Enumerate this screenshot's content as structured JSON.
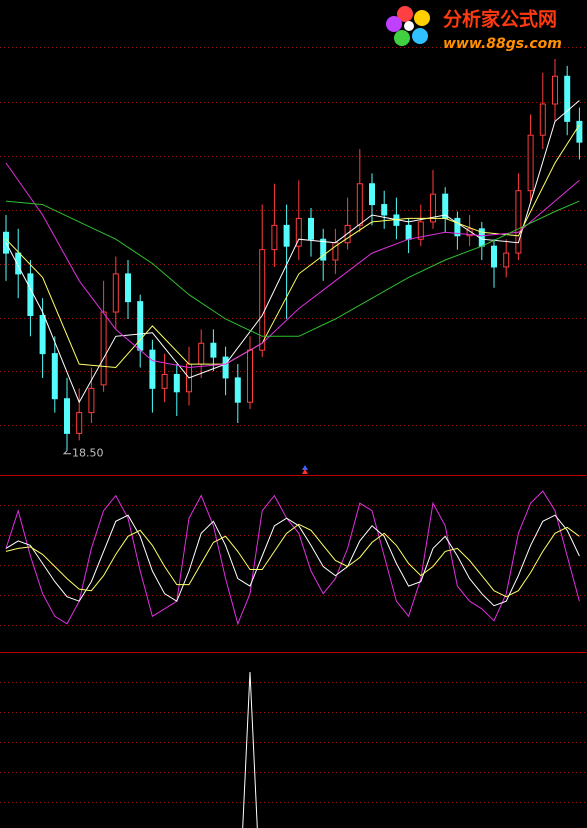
{
  "logo": {
    "title": "分析家公式网",
    "url": "www.88gs.com"
  },
  "chart_data": [
    {
      "type": "candlestick",
      "ylim": [
        17.8,
        31.5
      ],
      "up_color": "#ff3c3c",
      "down_color": "#54fcfc",
      "candles": {
        "open": [
          24.8,
          24.2,
          23.6,
          22.4,
          21.3,
          20.0,
          19.0,
          19.6,
          20.4,
          22.5,
          23.6,
          22.8,
          21.4,
          20.3,
          20.7,
          20.2,
          21.0,
          21.6,
          21.2,
          20.6,
          19.9,
          21.4,
          24.3,
          25.0,
          24.4,
          25.2,
          24.6,
          24.0,
          24.5,
          25.0,
          26.2,
          25.6,
          25.3,
          25.0,
          24.6,
          25.1,
          25.9,
          25.2,
          24.7,
          24.9,
          24.4,
          23.8,
          24.2,
          26.0,
          27.6,
          28.5,
          29.3,
          28.0
        ],
        "high": [
          25.3,
          24.9,
          24.0,
          22.9,
          21.8,
          20.6,
          20.3,
          20.9,
          23.4,
          24.1,
          24.0,
          23.0,
          21.7,
          21.3,
          21.0,
          21.5,
          22.0,
          22.0,
          21.5,
          21.0,
          21.8,
          25.6,
          26.2,
          25.6,
          26.3,
          25.5,
          24.9,
          24.9,
          25.8,
          27.2,
          26.5,
          26.0,
          25.8,
          25.2,
          25.6,
          26.6,
          26.1,
          25.4,
          25.3,
          25.1,
          24.6,
          24.6,
          26.5,
          28.2,
          29.4,
          29.8,
          29.6,
          28.4
        ],
        "low": [
          23.4,
          22.9,
          21.8,
          20.6,
          19.6,
          18.5,
          18.8,
          19.3,
          20.2,
          22.0,
          22.3,
          20.9,
          19.6,
          19.9,
          19.5,
          19.8,
          20.6,
          20.8,
          20.1,
          19.3,
          19.7,
          21.2,
          23.8,
          22.3,
          24.0,
          24.1,
          23.4,
          23.6,
          24.3,
          24.8,
          25.0,
          24.9,
          24.6,
          24.2,
          24.4,
          24.9,
          24.8,
          24.3,
          24.4,
          24.0,
          23.2,
          23.5,
          24.0,
          25.7,
          27.2,
          28.0,
          27.6,
          26.9
        ],
        "close": [
          24.2,
          23.6,
          22.4,
          21.3,
          20.0,
          19.0,
          19.6,
          20.3,
          22.5,
          23.6,
          22.8,
          21.4,
          20.3,
          20.7,
          20.2,
          21.0,
          21.6,
          21.2,
          20.6,
          19.9,
          21.4,
          24.3,
          25.0,
          24.4,
          25.2,
          24.6,
          24.0,
          24.5,
          25.0,
          26.2,
          25.6,
          25.3,
          25.0,
          24.6,
          25.1,
          25.9,
          25.2,
          24.7,
          24.9,
          24.4,
          23.8,
          24.2,
          26.0,
          27.6,
          28.5,
          29.3,
          28.0,
          27.4
        ]
      },
      "series": [
        {
          "color": "#ffffff",
          "x": [
            0,
            3,
            6,
            9,
            12,
            15,
            18,
            21,
            24,
            27,
            30,
            33,
            36,
            39,
            42,
            45,
            47
          ],
          "values": [
            24.5,
            22.5,
            19.9,
            21.8,
            21.9,
            20.6,
            21.0,
            22.4,
            24.6,
            24.5,
            25.3,
            25.1,
            25.3,
            24.6,
            24.5,
            28.0,
            28.6
          ]
        },
        {
          "color": "#ffff66",
          "x": [
            0,
            3,
            6,
            9,
            12,
            15,
            18,
            21,
            24,
            27,
            30,
            33,
            36,
            39,
            42,
            45,
            47
          ],
          "values": [
            24.6,
            23.5,
            21.0,
            20.9,
            22.1,
            21.0,
            21.0,
            21.6,
            23.6,
            24.4,
            25.1,
            25.2,
            25.2,
            24.8,
            24.7,
            26.8,
            27.9
          ]
        },
        {
          "color": "#e030e0",
          "x": [
            0,
            3,
            6,
            9,
            12,
            15,
            18,
            21,
            24,
            27,
            30,
            33,
            36,
            39,
            42,
            45,
            47
          ],
          "values": [
            26.8,
            25.3,
            23.4,
            22.0,
            21.1,
            20.9,
            21.0,
            21.6,
            22.6,
            23.4,
            24.2,
            24.6,
            24.8,
            24.7,
            24.8,
            25.7,
            26.3
          ]
        },
        {
          "color": "#30c030",
          "x": [
            0,
            3,
            6,
            9,
            12,
            15,
            18,
            21,
            24,
            27,
            30,
            33,
            36,
            39,
            42,
            45,
            47
          ],
          "values": [
            25.7,
            25.6,
            25.1,
            24.6,
            23.9,
            23.0,
            22.3,
            21.8,
            21.8,
            22.3,
            22.9,
            23.5,
            24.0,
            24.4,
            24.9,
            25.4,
            25.7
          ]
        }
      ],
      "annotations": [
        {
          "label": "18.50",
          "value": 18.5,
          "index": 5
        }
      ]
    },
    {
      "type": "line",
      "ylim": [
        -8,
        108
      ],
      "series": [
        {
          "color": "#e030e0",
          "values": [
            60,
            85,
            55,
            30,
            15,
            10,
            25,
            60,
            85,
            95,
            80,
            45,
            15,
            20,
            25,
            80,
            95,
            75,
            40,
            10,
            30,
            85,
            95,
            80,
            70,
            45,
            30,
            40,
            60,
            90,
            85,
            55,
            25,
            15,
            40,
            90,
            75,
            35,
            25,
            20,
            12,
            30,
            70,
            90,
            98,
            85,
            55,
            25
          ]
        },
        {
          "color": "#ffffff",
          "values": [
            60,
            65,
            62,
            50,
            38,
            28,
            25,
            38,
            58,
            78,
            82,
            68,
            45,
            30,
            25,
            45,
            70,
            78,
            62,
            40,
            35,
            55,
            75,
            80,
            75,
            62,
            48,
            42,
            48,
            65,
            75,
            68,
            50,
            35,
            38,
            60,
            68,
            55,
            40,
            30,
            22,
            25,
            42,
            62,
            78,
            82,
            72,
            55
          ]
        },
        {
          "color": "#ffff66",
          "values": [
            58,
            60,
            61,
            56,
            48,
            40,
            33,
            32,
            42,
            56,
            68,
            72,
            62,
            48,
            36,
            36,
            50,
            64,
            68,
            58,
            46,
            46,
            58,
            70,
            76,
            72,
            62,
            52,
            48,
            54,
            64,
            70,
            62,
            50,
            42,
            48,
            58,
            60,
            52,
            42,
            32,
            28,
            32,
            44,
            58,
            70,
            74,
            68
          ]
        }
      ]
    },
    {
      "type": "line",
      "ylim": [
        0,
        100
      ],
      "series": [
        {
          "color": "#ffffff",
          "x": [
            19.4,
            20,
            20.6
          ],
          "values": [
            0,
            100,
            0
          ]
        }
      ]
    }
  ]
}
